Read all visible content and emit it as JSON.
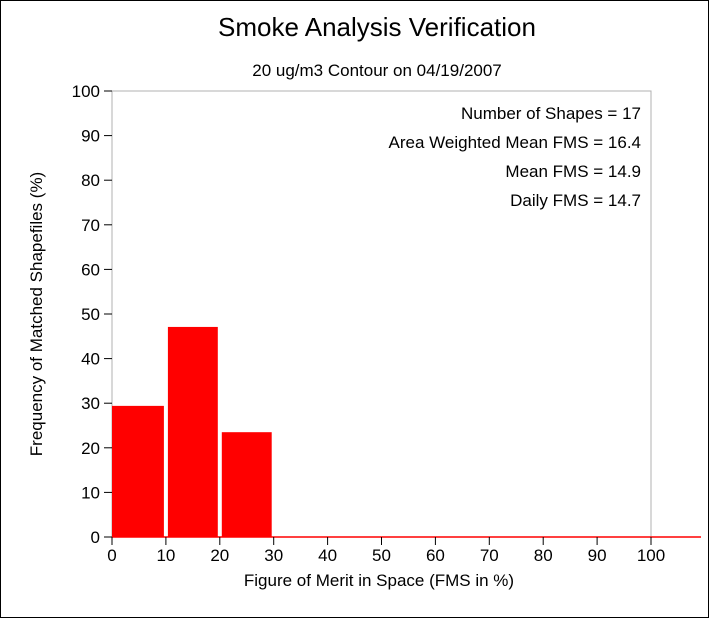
{
  "chart_data": {
    "type": "bar",
    "title": "Smoke Analysis Verification",
    "subtitle": "20 ug/m3 Contour on 04/19/2007",
    "xlabel": "Figure of Merit in Space (FMS in %)",
    "ylabel": "Frequency of Matched Shapefiles (%)",
    "xlim": [
      0,
      100
    ],
    "ylim": [
      0,
      100
    ],
    "x_ticks": [
      "0",
      "10",
      "20",
      "30",
      "40",
      "50",
      "60",
      "70",
      "80",
      "90",
      "100"
    ],
    "y_ticks": [
      "0",
      "10",
      "20",
      "30",
      "40",
      "50",
      "60",
      "70",
      "80",
      "90",
      "100"
    ],
    "bin_width": 10,
    "bins": [
      {
        "start": 0,
        "end": 10,
        "value": 29.4
      },
      {
        "start": 10,
        "end": 20,
        "value": 47.1
      },
      {
        "start": 20,
        "end": 30,
        "value": 23.5
      },
      {
        "start": 30,
        "end": 40,
        "value": 0
      },
      {
        "start": 40,
        "end": 50,
        "value": 0
      },
      {
        "start": 50,
        "end": 60,
        "value": 0
      },
      {
        "start": 60,
        "end": 70,
        "value": 0
      },
      {
        "start": 70,
        "end": 80,
        "value": 0
      },
      {
        "start": 80,
        "end": 90,
        "value": 0
      },
      {
        "start": 90,
        "end": 100,
        "value": 0
      }
    ],
    "annotations": [
      "Number of Shapes = 17",
      "Area Weighted Mean FMS = 16.4",
      "Mean FMS = 14.9",
      "Daily FMS = 14.7"
    ],
    "bar_color": "#ff0000",
    "grid": false
  }
}
